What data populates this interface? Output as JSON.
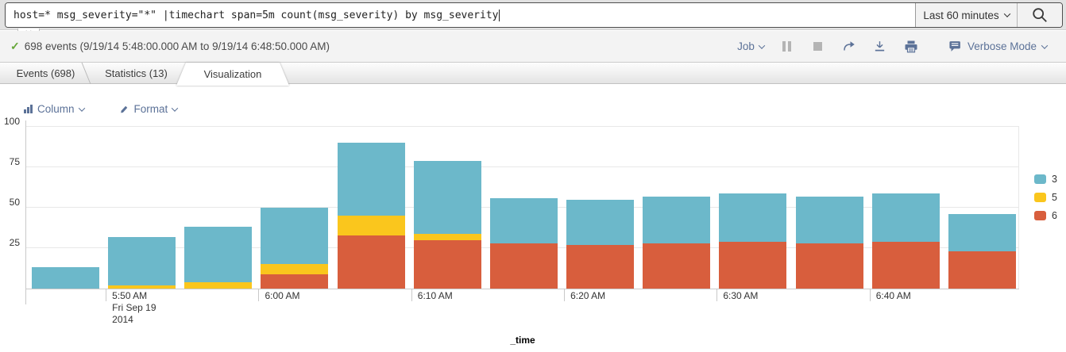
{
  "search_bar": {
    "query": "host=* msg_severity=\"*\" |timechart span=5m count(msg_severity) by msg_severity",
    "time_range_label": "Last 60 minutes"
  },
  "status_bar": {
    "events_summary": "698 events (9/19/14 5:48:00.000 AM to 9/19/14 6:48:50.000 AM)",
    "job_label": "Job",
    "verbose_mode_label": "Verbose Mode"
  },
  "tabs": [
    {
      "label": "Events (698)",
      "active": false
    },
    {
      "label": "Statistics (13)",
      "active": false
    },
    {
      "label": "Visualization",
      "active": true
    }
  ],
  "viz_controls": {
    "chart_type_label": "Column",
    "format_label": "Format"
  },
  "colors": {
    "series_3": "#6CB8CA",
    "series_5": "#FAC61D",
    "series_6": "#D85E3D",
    "link_blue": "#5C7298",
    "check_green": "#65A637"
  },
  "chart_data": {
    "type": "bar",
    "stacked": true,
    "title": "",
    "xlabel": "_time",
    "ylabel": "",
    "ylim": [
      0,
      100
    ],
    "yticks": [
      25,
      50,
      75,
      100
    ],
    "grid": true,
    "legend_position": "right",
    "x": [
      "5:45 AM",
      "5:50 AM",
      "5:55 AM",
      "6:00 AM",
      "6:05 AM",
      "6:10 AM",
      "6:15 AM",
      "6:20 AM",
      "6:25 AM",
      "6:30 AM",
      "6:35 AM",
      "6:40 AM",
      "6:45 AM"
    ],
    "series": [
      {
        "name": "3",
        "color": "#6CB8CA",
        "values": [
          13,
          30,
          34,
          35,
          45,
          45,
          28,
          28,
          29,
          30,
          29,
          30,
          23
        ]
      },
      {
        "name": "5",
        "color": "#FAC61D",
        "values": [
          0,
          2,
          4,
          6,
          12,
          4,
          0,
          0,
          0,
          0,
          0,
          0,
          0
        ]
      },
      {
        "name": "6",
        "color": "#D85E3D",
        "values": [
          0,
          0,
          0,
          9,
          33,
          30,
          28,
          27,
          28,
          29,
          28,
          29,
          23
        ]
      }
    ],
    "stack_order_bottom_to_top": [
      "6",
      "5",
      "3"
    ],
    "x_axis_labels": [
      {
        "index": 1,
        "label": "5:50 AM",
        "sub": [
          "Fri Sep 19",
          "2014"
        ]
      },
      {
        "index": 3,
        "label": "6:00 AM",
        "sub": []
      },
      {
        "index": 5,
        "label": "6:10 AM",
        "sub": []
      },
      {
        "index": 7,
        "label": "6:20 AM",
        "sub": []
      },
      {
        "index": 9,
        "label": "6:30 AM",
        "sub": []
      },
      {
        "index": 11,
        "label": "6:40 AM",
        "sub": []
      }
    ]
  }
}
